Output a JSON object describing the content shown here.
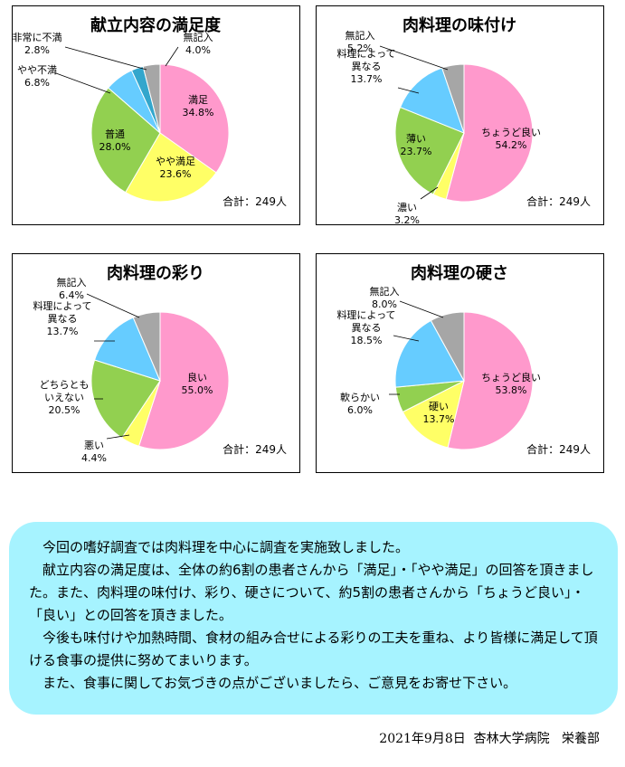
{
  "chart_data": [
    {
      "type": "pie",
      "title": "献立内容の満足度",
      "total": "合計：249人",
      "slices": [
        {
          "name": "満足",
          "value": 34.8,
          "label": "34.8%",
          "color": "#ff99cc"
        },
        {
          "name": "やや満足",
          "value": 23.6,
          "label": "23.6%",
          "color": "#ffff66"
        },
        {
          "name": "普通",
          "value": 28.0,
          "label": "28.0%",
          "color": "#92d050"
        },
        {
          "name": "やや不満",
          "value": 6.8,
          "label": "6.8%",
          "color": "#66ccff"
        },
        {
          "name": "非常に不満",
          "value": 2.8,
          "label": "2.8%",
          "color": "#33a6cc"
        },
        {
          "name": "無記入",
          "value": 4.0,
          "label": "4.0%",
          "color": "#a6a6a6"
        }
      ]
    },
    {
      "type": "pie",
      "title": "肉料理の味付け",
      "total": "合計：249人",
      "slices": [
        {
          "name": "ちょうど良い",
          "value": 54.2,
          "label": "54.2%",
          "color": "#ff99cc"
        },
        {
          "name": "濃い",
          "value": 3.2,
          "label": "3.2%",
          "color": "#ffff66"
        },
        {
          "name": "薄い",
          "value": 23.7,
          "label": "23.7%",
          "color": "#92d050"
        },
        {
          "name": "料理によって異なる",
          "value": 13.7,
          "label": "13.7%",
          "color": "#66ccff"
        },
        {
          "name": "無記入",
          "value": 5.2,
          "label": "5.2%",
          "color": "#a6a6a6"
        }
      ]
    },
    {
      "type": "pie",
      "title": "肉料理の彩り",
      "total": "合計：249人",
      "slices": [
        {
          "name": "良い",
          "value": 55.0,
          "label": "55.0%",
          "color": "#ff99cc"
        },
        {
          "name": "悪い",
          "value": 4.4,
          "label": "4.4%",
          "color": "#ffff66"
        },
        {
          "name": "どちらともいえない",
          "value": 20.5,
          "label": "20.5%",
          "color": "#92d050"
        },
        {
          "name": "料理によって異なる",
          "value": 13.7,
          "label": "13.7%",
          "color": "#66ccff"
        },
        {
          "name": "無記入",
          "value": 6.4,
          "label": "6.4%",
          "color": "#a6a6a6"
        }
      ]
    },
    {
      "type": "pie",
      "title": "肉料理の硬さ",
      "total": "合計：249人",
      "slices": [
        {
          "name": "ちょうど良い",
          "value": 53.8,
          "label": "53.8%",
          "color": "#ff99cc"
        },
        {
          "name": "硬い",
          "value": 13.7,
          "label": "13.7%",
          "color": "#ffff66"
        },
        {
          "name": "軟らかい",
          "value": 6.0,
          "label": "6.0%",
          "color": "#92d050"
        },
        {
          "name": "料理によって異なる",
          "value": 18.5,
          "label": "18.5%",
          "color": "#66ccff"
        },
        {
          "name": "無記入",
          "value": 8.0,
          "label": "8.0%",
          "color": "#a6a6a6"
        }
      ]
    }
  ],
  "note": {
    "paragraphs": [
      "今回の嗜好調査では肉料理を中心に調査を実施致しました。",
      "献立内容の満足度は、全体の約6割の患者さんから「満足」・「やや満足」の回答を頂きました。また、肉料理の味付け、彩り、硬さについて、約5割の患者さんから「ちょうど良い」・「良い」との回答を頂きました。",
      "今後も味付けや加熱時間、食材の組み合せによる彩りの工夫を重ね、より皆様に満足して頂ける食事の提供に努めてまいります。",
      "また、食事に関してお気づきの点がございましたら、ご意見をお寄せ下さい。"
    ]
  },
  "footer": {
    "date": "2021年9月8日",
    "hospital": "杏林大学病院",
    "dept": "栄養部"
  }
}
